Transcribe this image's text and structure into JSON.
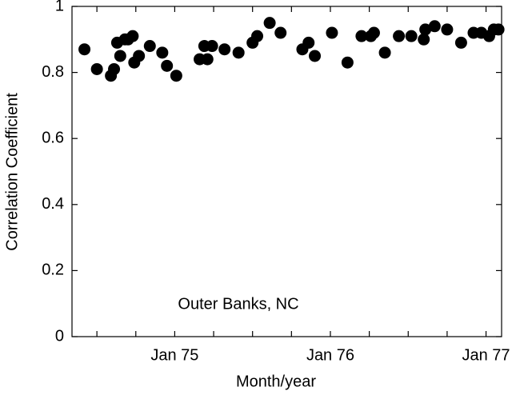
{
  "chart_data": {
    "type": "scatter",
    "xlabel": "Month/year",
    "ylabel": "Correlation Coefficient",
    "annotation": "Outer Banks, NC",
    "color": "#000000",
    "grid": false,
    "xlim": [
      1974.34,
      1977.1
    ],
    "ylim": [
      0,
      1
    ],
    "xticks": [
      {
        "value": 1974.5,
        "label": null
      },
      {
        "value": 1974.75,
        "label": null
      },
      {
        "value": 1975,
        "label": "Jan 75"
      },
      {
        "value": 1975.25,
        "label": null
      },
      {
        "value": 1975.5,
        "label": null
      },
      {
        "value": 1975.75,
        "label": null
      },
      {
        "value": 1976,
        "label": "Jan 76"
      },
      {
        "value": 1976.25,
        "label": null
      },
      {
        "value": 1976.5,
        "label": null
      },
      {
        "value": 1976.75,
        "label": null
      },
      {
        "value": 1977,
        "label": "Jan 77"
      }
    ],
    "yticks": [
      0,
      0.2,
      0.4,
      0.6,
      0.8,
      1
    ],
    "x": [
      1974.42,
      1974.5,
      1974.59,
      1974.61,
      1974.63,
      1974.65,
      1974.68,
      1974.7,
      1974.73,
      1974.74,
      1974.77,
      1974.84,
      1974.92,
      1974.95,
      1975.01,
      1975.16,
      1975.19,
      1975.21,
      1975.24,
      1975.32,
      1975.41,
      1975.5,
      1975.53,
      1975.61,
      1975.68,
      1975.82,
      1975.86,
      1975.9,
      1976.01,
      1976.11,
      1976.2,
      1976.26,
      1976.28,
      1976.35,
      1976.44,
      1976.52,
      1976.6,
      1976.61,
      1976.67,
      1976.75,
      1976.84,
      1976.92,
      1976.97,
      1977.02,
      1977.05,
      1977.08
    ],
    "values": [
      0.87,
      0.81,
      0.79,
      0.81,
      0.89,
      0.85,
      0.9,
      0.9,
      0.91,
      0.83,
      0.85,
      0.88,
      0.86,
      0.82,
      0.79,
      0.84,
      0.88,
      0.84,
      0.88,
      0.87,
      0.86,
      0.89,
      0.91,
      0.95,
      0.92,
      0.87,
      0.89,
      0.85,
      0.92,
      0.83,
      0.91,
      0.91,
      0.92,
      0.86,
      0.91,
      0.91,
      0.9,
      0.93,
      0.94,
      0.93,
      0.89,
      0.92,
      0.92,
      0.91,
      0.93,
      0.93
    ]
  }
}
